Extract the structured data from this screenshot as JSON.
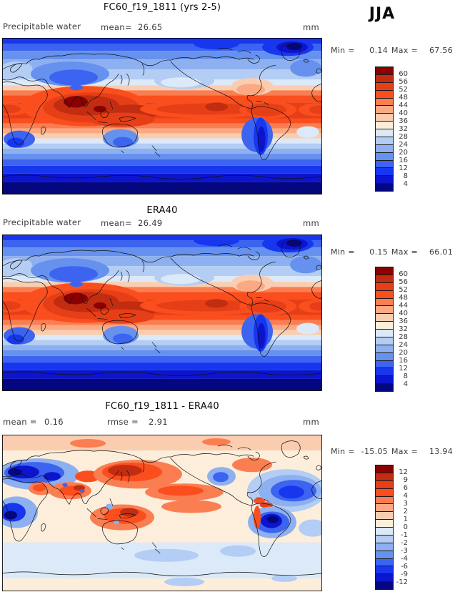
{
  "season_label": "JJA",
  "palette_high_to_low": [
    "#8B0000",
    "#C22D11",
    "#E63F17",
    "#FB4E1E",
    "#FA7E51",
    "#FBA983",
    "#FBCDB0",
    "#FCEEDB",
    "#DCE9F8",
    "#B3CDF4",
    "#8DB0F0",
    "#6691EE",
    "#3C64F1",
    "#1737EF",
    "#0D15CC",
    "#04077E"
  ],
  "panels": [
    {
      "title": "FC60_f19_1811 (yrs 2-5)",
      "left_label": "Precipitable water",
      "mean_label": "mean=",
      "mean_value": "26.65",
      "units": "mm",
      "min_label": "Min =",
      "min_value": "0.14",
      "max_label": "Max =",
      "max_value": "67.56",
      "colorbar_ticks": [
        "60",
        "56",
        "52",
        "48",
        "44",
        "40",
        "36",
        "32",
        "28",
        "24",
        "20",
        "16",
        "12",
        "8",
        "4"
      ]
    },
    {
      "title": "ERA40",
      "left_label": "Precipitable water",
      "mean_label": "mean=",
      "mean_value": "26.49",
      "units": "mm",
      "min_label": "Min =",
      "min_value": "0.15",
      "max_label": "Max =",
      "max_value": "66.01",
      "colorbar_ticks": [
        "60",
        "56",
        "52",
        "48",
        "44",
        "40",
        "36",
        "32",
        "28",
        "24",
        "20",
        "16",
        "12",
        "8",
        "4"
      ]
    },
    {
      "title": "FC60_f19_1811 - ERA40",
      "mean_label": "mean =",
      "mean_value": "0.16",
      "rmse_label": "rmse =",
      "rmse_value": "2.91",
      "units": "mm",
      "min_label": "Min =",
      "min_value": "-15.05",
      "max_label": "Max =",
      "max_value": "13.94",
      "colorbar_ticks": [
        "12",
        "9",
        "6",
        "4",
        "3",
        "2",
        "1",
        "0",
        "-1",
        "-2",
        "-3",
        "-4",
        "-6",
        "-9",
        "-12"
      ]
    }
  ],
  "chart_data": [
    {
      "type": "heatmap",
      "title": "FC60_f19_1811 (yrs 2-5)",
      "variable": "Precipitable water",
      "season": "JJA",
      "units": "mm",
      "projection": "global cylindrical lat-lon, lon 0-360E left to right, lat 90N top to 90S bottom",
      "statistics": {
        "mean": 26.65,
        "min": 0.14,
        "max": 67.56
      },
      "contour_levels": [
        4,
        8,
        12,
        16,
        20,
        24,
        28,
        32,
        36,
        40,
        44,
        48,
        52,
        56,
        60
      ],
      "palette_low_to_high": [
        "#04077E",
        "#0D15CC",
        "#1737EF",
        "#3C64F1",
        "#6691EE",
        "#8DB0F0",
        "#B3CDF4",
        "#DCE9F8",
        "#FCEEDB",
        "#FBCDB0",
        "#FBA983",
        "#FA7E51",
        "#FB4E1E",
        "#E63F17",
        "#C22D11",
        "#8B0000"
      ],
      "legend_position": "right",
      "description": "High (>60 mm, dark red) band over India, SE Asia and the tropical west Pacific; red ITCZ band circling the tropics; light blue mid-latitudes; dark navy (<4 mm) over Antarctica and deep blue Arctic/Greenland."
    },
    {
      "type": "heatmap",
      "title": "ERA40",
      "variable": "Precipitable water",
      "season": "JJA",
      "units": "mm",
      "projection": "global cylindrical lat-lon, lon 0-360E left to right, lat 90N top to 90S bottom",
      "statistics": {
        "mean": 26.49,
        "min": 0.15,
        "max": 66.01
      },
      "contour_levels": [
        4,
        8,
        12,
        16,
        20,
        24,
        28,
        32,
        36,
        40,
        44,
        48,
        52,
        56,
        60
      ],
      "palette_low_to_high": [
        "#04077E",
        "#0D15CC",
        "#1737EF",
        "#3C64F1",
        "#6691EE",
        "#8DB0F0",
        "#B3CDF4",
        "#DCE9F8",
        "#FCEEDB",
        "#FBCDB0",
        "#FBA983",
        "#FA7E51",
        "#FB4E1E",
        "#E63F17",
        "#C22D11",
        "#8B0000"
      ],
      "legend_position": "right",
      "description": "Reanalysis field, nearly identical pattern to the model panel: monsoon maximum over India/west Pacific warm pool, tropical red band, polar minima."
    },
    {
      "type": "heatmap",
      "title": "FC60_f19_1811 - ERA40",
      "variable": "Precipitable water difference (model minus reanalysis)",
      "season": "JJA",
      "units": "mm",
      "projection": "global cylindrical lat-lon, lon 0-360E left to right, lat 90N top to 90S bottom",
      "statistics": {
        "mean": 0.16,
        "rmse": 2.91,
        "min": -15.05,
        "max": 13.94
      },
      "contour_levels": [
        -12,
        -9,
        -6,
        -4,
        -3,
        -2,
        -1,
        0,
        1,
        2,
        3,
        4,
        6,
        9,
        12
      ],
      "palette_low_to_high": [
        "#04077E",
        "#0D15CC",
        "#1737EF",
        "#3C64F1",
        "#6691EE",
        "#8DB0F0",
        "#B3CDF4",
        "#DCE9F8",
        "#FCEEDB",
        "#FBCDB0",
        "#FBA983",
        "#FA7E51",
        "#FB4E1E",
        "#E63F17",
        "#C22D11",
        "#8B0000"
      ],
      "legend_position": "right",
      "description": "Mostly weak positive (cream/pink) background; strong negative (blue) anomalies over Europe/central Asia, tropical Africa, Caribbean/tropical Atlantic and Amazonia; strong positive (red) anomalies over the NW Pacific near Japan, central Pacific, maritime continent/N Australia and Tibet/India."
    }
  ]
}
